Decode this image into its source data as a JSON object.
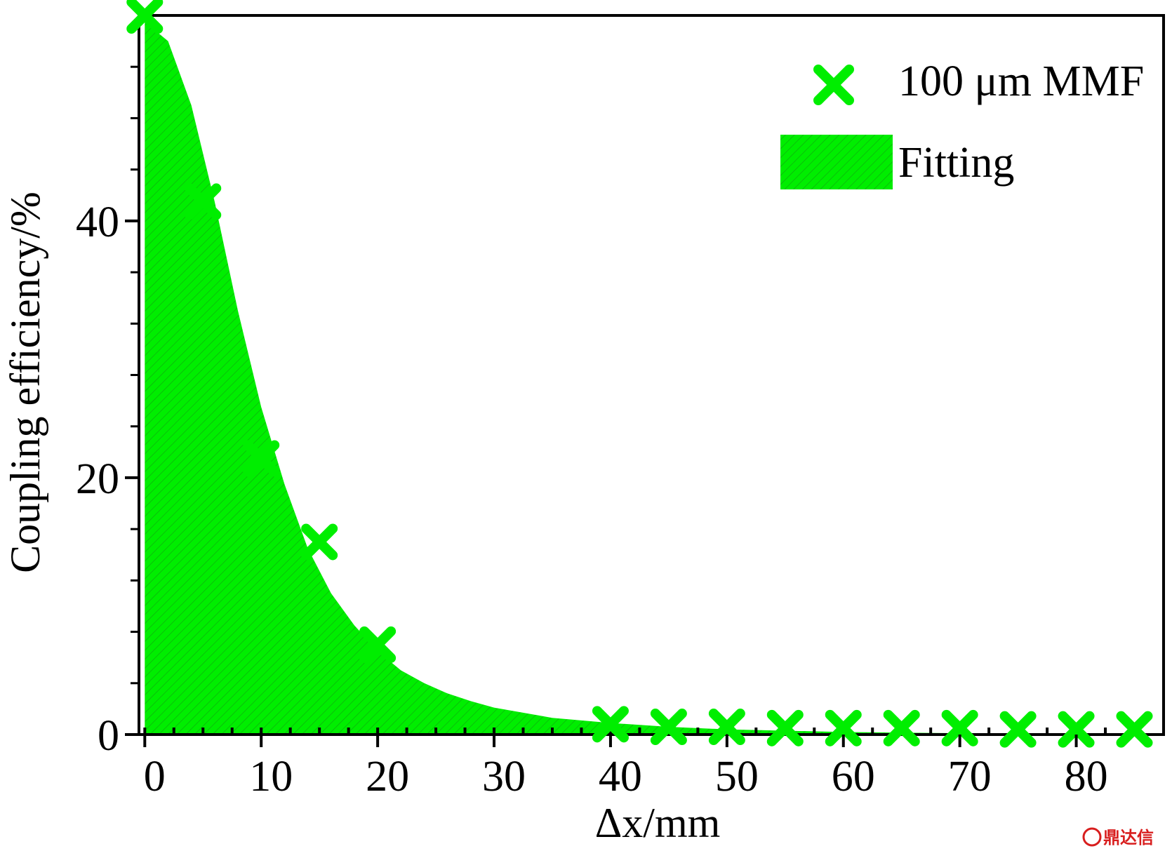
{
  "chart_data": {
    "type": "scatter",
    "title": "",
    "xlabel": "Δx/mm",
    "ylabel": "Coupling efficiency/%",
    "xlim": [
      -0.5,
      87.5
    ],
    "ylim": [
      0,
      56
    ],
    "xticks": [
      0,
      10,
      20,
      30,
      40,
      50,
      60,
      70,
      80
    ],
    "yticks": [
      0,
      20,
      40
    ],
    "grid": false,
    "legend_position": "top-right",
    "series": [
      {
        "name": "100 μm MMF",
        "kind": "markers",
        "marker": "x",
        "color": "#00ee00",
        "x": [
          0,
          5,
          10,
          15,
          20,
          40,
          45,
          50,
          55,
          60,
          65,
          70,
          75,
          80,
          85
        ],
        "y": [
          56,
          41.5,
          21.5,
          15,
          7,
          0.8,
          0.6,
          0.6,
          0.5,
          0.5,
          0.5,
          0.5,
          0.4,
          0.4,
          0.4
        ]
      },
      {
        "name": "Fitting",
        "kind": "filled-area",
        "color": "#00ee00",
        "x": [
          0,
          2,
          4,
          6,
          8,
          10,
          12,
          14,
          16,
          18,
          20,
          22,
          24,
          26,
          28,
          30,
          35,
          40,
          45,
          50,
          60,
          70,
          80,
          87
        ],
        "y": [
          55.5,
          54,
          49,
          41.5,
          33,
          25.5,
          19.5,
          14.5,
          11,
          8.5,
          6.5,
          5,
          4,
          3.2,
          2.6,
          2.1,
          1.3,
          0.9,
          0.6,
          0.4,
          0.2,
          0.1,
          0.05,
          0
        ]
      }
    ]
  },
  "watermark": {
    "text": "鼎达信"
  }
}
